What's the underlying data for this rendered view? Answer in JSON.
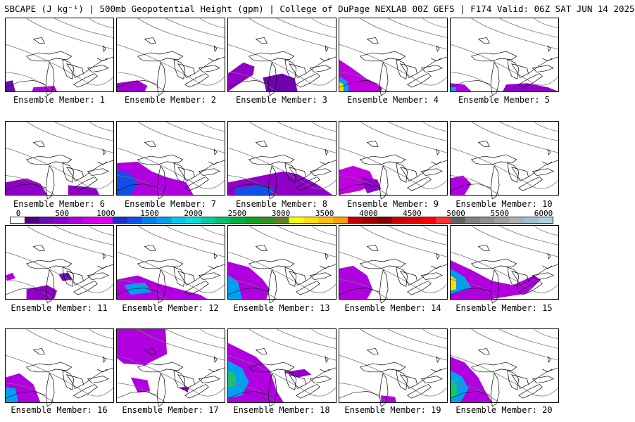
{
  "header": {
    "text": "SBCAPE (J kg⁻¹) | 500mb Geopotential Height (gpm) | College of DuPage NEXLAB 00Z GEFS | F174 Valid: 06Z SAT JUN 14 2025"
  },
  "colorbar": {
    "ticks": [
      "0",
      "500",
      "1000",
      "1500",
      "2000",
      "2500",
      "3000",
      "3500",
      "4000",
      "4500",
      "5000",
      "5500",
      "6000"
    ],
    "min": 0,
    "max": 6000,
    "colors": [
      "#ffffff",
      "#4b0082",
      "#6a0dad",
      "#8b00c9",
      "#b000e0",
      "#d000e8",
      "#e000f0",
      "#2030d0",
      "#1050e8",
      "#0080f0",
      "#00a0f0",
      "#00c8f0",
      "#00e0e0",
      "#00d0a0",
      "#00c070",
      "#00b040",
      "#10a020",
      "#309020",
      "#608020",
      "#ffff00",
      "#ffe000",
      "#ffc000",
      "#ffa000",
      "#c00000",
      "#a00000",
      "#800000",
      "#d00000",
      "#e00000",
      "#ff0000",
      "#ff3030",
      "#606060",
      "#808080",
      "#909090",
      "#a0a0a0",
      "#b0b0b0",
      "#a0c0d0",
      "#b0d0e0"
    ]
  },
  "panels": [
    {
      "label": "Ensemble Member: 1"
    },
    {
      "label": "Ensemble Member: 2"
    },
    {
      "label": "Ensemble Member: 3"
    },
    {
      "label": "Ensemble Member: 4"
    },
    {
      "label": "Ensemble Member: 5"
    },
    {
      "label": "Ensemble Member: 6"
    },
    {
      "label": "Ensemble Member: 7"
    },
    {
      "label": "Ensemble Member: 8"
    },
    {
      "label": "Ensemble Member: 9"
    },
    {
      "label": "Ensemble Member: 10"
    },
    {
      "label": "Ensemble Member: 11"
    },
    {
      "label": "Ensemble Member: 12"
    },
    {
      "label": "Ensemble Member: 13"
    },
    {
      "label": "Ensemble Member: 14"
    },
    {
      "label": "Ensemble Member: 15"
    },
    {
      "label": "Ensemble Member: 16"
    },
    {
      "label": "Ensemble Member: 17"
    },
    {
      "label": "Ensemble Member: 18"
    },
    {
      "label": "Ensemble Member: 19"
    },
    {
      "label": "Ensemble Member: 20"
    }
  ]
}
